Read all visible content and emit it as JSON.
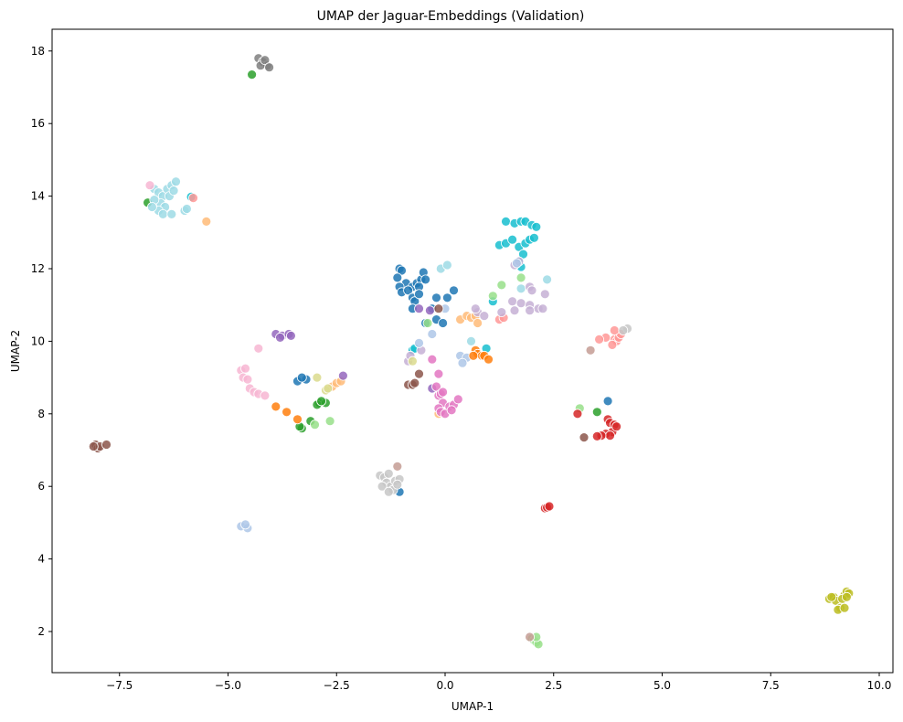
{
  "chart_data": {
    "type": "scatter",
    "title": "UMAP der Jaguar-Embeddings (Validation)",
    "xlabel": "UMAP-1",
    "ylabel": "UMAP-2",
    "xlim": [
      -8.9,
      10.3
    ],
    "ylim": [
      0.85,
      18.6
    ],
    "xticks": [
      -7.5,
      -5.0,
      -2.5,
      0.0,
      2.5,
      5.0,
      7.5,
      10.0
    ],
    "xtick_labels": [
      "−7.5",
      "−5.0",
      "−2.5",
      "0.0",
      "2.5",
      "5.0",
      "7.5",
      "10.0"
    ],
    "yticks": [
      2,
      4,
      6,
      8,
      10,
      12,
      14,
      16,
      18
    ],
    "ytick_labels": [
      "2",
      "4",
      "6",
      "8",
      "10",
      "12",
      "14",
      "16",
      "18"
    ],
    "grid": false,
    "legend": null,
    "marker_edge_color": "#ffffff",
    "marker_alpha": 0.85,
    "series": [
      {
        "name": "gray",
        "color": "#7f7f7f",
        "points": [
          [
            -4.3,
            17.8
          ],
          [
            -4.2,
            17.7
          ],
          [
            -4.1,
            17.6
          ],
          [
            -4.25,
            17.6
          ],
          [
            -4.15,
            17.75
          ],
          [
            -4.05,
            17.55
          ]
        ]
      },
      {
        "name": "green",
        "color": "#2ca02c",
        "points": [
          [
            -4.45,
            17.35
          ],
          [
            -6.85,
            13.82
          ],
          [
            -3.3,
            7.6
          ],
          [
            -3.35,
            7.65
          ],
          [
            -3.1,
            7.8
          ],
          [
            -2.9,
            8.3
          ],
          [
            -2.95,
            8.25
          ],
          [
            -2.75,
            8.3
          ],
          [
            -2.85,
            8.35
          ],
          [
            3.5,
            8.05
          ]
        ]
      },
      {
        "name": "light-cyan",
        "color": "#9edae5",
        "points": [
          [
            -6.7,
            14.2
          ],
          [
            -6.6,
            14.1
          ],
          [
            -6.5,
            14.0
          ],
          [
            -6.4,
            14.2
          ],
          [
            -6.3,
            14.3
          ],
          [
            -6.2,
            14.4
          ],
          [
            -6.35,
            14.0
          ],
          [
            -6.55,
            13.8
          ],
          [
            -6.45,
            13.7
          ],
          [
            -6.6,
            13.6
          ],
          [
            -6.5,
            13.5
          ],
          [
            -6.3,
            13.5
          ],
          [
            -6.0,
            13.6
          ],
          [
            -5.95,
            13.65
          ],
          [
            -6.7,
            13.9
          ],
          [
            -6.25,
            14.15
          ],
          [
            -6.75,
            13.7
          ],
          [
            -0.1,
            12.0
          ],
          [
            0.05,
            12.1
          ],
          [
            2.35,
            11.7
          ],
          [
            -0.45,
            10.5
          ],
          [
            0.6,
            10.0
          ],
          [
            1.75,
            11.45
          ]
        ]
      },
      {
        "name": "pink",
        "color": "#f7b6d2",
        "points": [
          [
            -6.8,
            14.3
          ],
          [
            -4.3,
            9.8
          ],
          [
            -4.7,
            9.2
          ],
          [
            -4.6,
            9.25
          ],
          [
            -4.65,
            9.0
          ],
          [
            -4.55,
            8.95
          ],
          [
            -4.5,
            8.7
          ],
          [
            -4.4,
            8.6
          ],
          [
            -4.3,
            8.55
          ],
          [
            -4.15,
            8.5
          ]
        ]
      },
      {
        "name": "cyan",
        "color": "#17becf",
        "points": [
          [
            -5.85,
            13.98
          ],
          [
            1.4,
            13.3
          ],
          [
            1.6,
            13.25
          ],
          [
            1.75,
            13.3
          ],
          [
            1.85,
            13.3
          ],
          [
            2.0,
            13.2
          ],
          [
            2.1,
            13.15
          ],
          [
            1.25,
            12.65
          ],
          [
            1.4,
            12.7
          ],
          [
            1.55,
            12.8
          ],
          [
            1.7,
            12.6
          ],
          [
            1.85,
            12.7
          ],
          [
            1.95,
            12.8
          ],
          [
            2.05,
            12.85
          ],
          [
            1.8,
            12.4
          ],
          [
            1.7,
            12.2
          ],
          [
            1.75,
            12.05
          ],
          [
            -0.75,
            9.75
          ],
          [
            -0.7,
            9.8
          ],
          [
            0.95,
            9.8
          ],
          [
            1.1,
            11.1
          ]
        ]
      },
      {
        "name": "salmon",
        "color": "#ff9896",
        "points": [
          [
            -5.8,
            13.95
          ],
          [
            3.9,
            10.05
          ],
          [
            3.95,
            10.0
          ],
          [
            3.7,
            10.1
          ],
          [
            3.55,
            10.05
          ],
          [
            3.85,
            9.9
          ],
          [
            4.0,
            10.1
          ],
          [
            4.05,
            10.2
          ],
          [
            3.9,
            10.3
          ],
          [
            1.25,
            10.6
          ],
          [
            1.35,
            10.65
          ]
        ]
      },
      {
        "name": "peach",
        "color": "#ffbb78",
        "points": [
          [
            -5.5,
            13.3
          ],
          [
            -2.6,
            8.75
          ],
          [
            -2.5,
            8.85
          ],
          [
            -2.4,
            8.9
          ],
          [
            0.35,
            10.6
          ],
          [
            0.5,
            10.7
          ],
          [
            0.6,
            10.65
          ],
          [
            0.7,
            10.7
          ],
          [
            0.75,
            10.5
          ],
          [
            -0.15,
            8.0
          ]
        ]
      },
      {
        "name": "blue",
        "color": "#1f77b4",
        "points": [
          [
            -1.05,
            12.0
          ],
          [
            -1.0,
            11.95
          ],
          [
            -1.1,
            11.75
          ],
          [
            -0.9,
            11.6
          ],
          [
            -0.75,
            11.5
          ],
          [
            -0.65,
            11.6
          ],
          [
            -0.55,
            11.7
          ],
          [
            -0.6,
            11.5
          ],
          [
            -1.05,
            11.5
          ],
          [
            -1.0,
            11.35
          ],
          [
            -0.85,
            11.4
          ],
          [
            -0.75,
            11.2
          ],
          [
            -0.7,
            11.1
          ],
          [
            -0.5,
            11.9
          ],
          [
            -0.45,
            11.7
          ],
          [
            -0.6,
            11.3
          ],
          [
            -0.2,
            11.2
          ],
          [
            0.05,
            11.2
          ],
          [
            0.2,
            11.4
          ],
          [
            -0.3,
            10.9
          ],
          [
            -0.75,
            10.9
          ],
          [
            -0.45,
            10.5
          ],
          [
            -0.2,
            10.6
          ],
          [
            -0.05,
            10.5
          ],
          [
            -3.4,
            8.9
          ],
          [
            -3.2,
            8.95
          ],
          [
            -3.3,
            9.0
          ],
          [
            -1.05,
            5.85
          ],
          [
            3.75,
            8.35
          ]
        ]
      },
      {
        "name": "purple",
        "color": "#9467bd",
        "points": [
          [
            -3.9,
            10.2
          ],
          [
            -3.75,
            10.15
          ],
          [
            -3.6,
            10.2
          ],
          [
            -3.55,
            10.15
          ],
          [
            -3.8,
            10.1
          ],
          [
            -0.6,
            10.9
          ],
          [
            -0.35,
            10.85
          ],
          [
            -2.35,
            9.05
          ],
          [
            -0.3,
            8.7
          ]
        ]
      },
      {
        "name": "lavender",
        "color": "#c5b0d5",
        "points": [
          [
            1.6,
            12.1
          ],
          [
            1.7,
            12.2
          ],
          [
            1.95,
            11.5
          ],
          [
            2.0,
            11.4
          ],
          [
            1.55,
            11.1
          ],
          [
            1.75,
            11.05
          ],
          [
            1.95,
            11.0
          ],
          [
            2.15,
            10.9
          ],
          [
            2.25,
            10.9
          ],
          [
            2.3,
            11.3
          ],
          [
            1.95,
            10.85
          ],
          [
            1.6,
            10.85
          ],
          [
            0.75,
            10.8
          ],
          [
            0.9,
            10.7
          ],
          [
            1.3,
            10.8
          ],
          [
            0.7,
            10.9
          ],
          [
            -0.85,
            9.45
          ],
          [
            -0.8,
            9.6
          ],
          [
            -0.55,
            9.75
          ]
        ]
      },
      {
        "name": "light-green",
        "color": "#98df8a",
        "points": [
          [
            1.75,
            11.75
          ],
          [
            1.3,
            11.55
          ],
          [
            1.1,
            11.25
          ],
          [
            -0.4,
            10.5
          ],
          [
            -3.0,
            7.7
          ],
          [
            -2.65,
            7.8
          ],
          [
            3.1,
            8.15
          ],
          [
            2.0,
            1.8
          ],
          [
            2.05,
            1.75
          ],
          [
            2.1,
            1.7
          ],
          [
            2.15,
            1.65
          ],
          [
            2.1,
            1.85
          ]
        ]
      },
      {
        "name": "light-blue",
        "color": "#aec7e8",
        "points": [
          [
            1.65,
            12.15
          ],
          [
            0.0,
            10.9
          ],
          [
            -0.3,
            10.2
          ],
          [
            -0.6,
            9.95
          ],
          [
            0.35,
            9.6
          ],
          [
            0.5,
            9.55
          ],
          [
            0.4,
            9.4
          ],
          [
            -4.7,
            4.9
          ],
          [
            -4.55,
            4.85
          ],
          [
            -4.6,
            4.95
          ]
        ]
      },
      {
        "name": "orange",
        "color": "#ff7f0e",
        "points": [
          [
            0.7,
            9.75
          ],
          [
            0.75,
            9.65
          ],
          [
            0.85,
            9.6
          ],
          [
            0.9,
            9.6
          ],
          [
            1.0,
            9.5
          ],
          [
            0.65,
            9.6
          ],
          [
            -3.9,
            8.2
          ],
          [
            -3.65,
            8.05
          ],
          [
            -3.4,
            7.85
          ]
        ]
      },
      {
        "name": "brown",
        "color": "#8c564b",
        "points": [
          [
            -0.15,
            10.9
          ],
          [
            -0.6,
            9.1
          ],
          [
            -0.85,
            8.8
          ],
          [
            -0.75,
            8.8
          ],
          [
            -0.7,
            8.85
          ],
          [
            -8.05,
            7.15
          ],
          [
            -8.0,
            7.05
          ],
          [
            -7.95,
            7.1
          ],
          [
            -7.8,
            7.15
          ],
          [
            -8.1,
            7.1
          ],
          [
            3.2,
            7.35
          ]
        ]
      },
      {
        "name": "olive-light",
        "color": "#dbdb8d",
        "points": [
          [
            -0.75,
            9.45
          ],
          [
            -2.95,
            9.0
          ],
          [
            -2.75,
            8.65
          ],
          [
            -2.7,
            8.7
          ]
        ]
      },
      {
        "name": "magenta",
        "color": "#e377c2",
        "points": [
          [
            -0.3,
            9.5
          ],
          [
            -0.15,
            9.1
          ],
          [
            -0.2,
            8.75
          ],
          [
            -0.15,
            8.5
          ],
          [
            -0.1,
            8.55
          ],
          [
            -0.05,
            8.3
          ],
          [
            0.1,
            8.2
          ],
          [
            0.2,
            8.25
          ],
          [
            0.3,
            8.4
          ],
          [
            -0.15,
            8.15
          ],
          [
            -0.1,
            8.05
          ],
          [
            0.0,
            8.0
          ],
          [
            0.15,
            8.1
          ],
          [
            -0.05,
            8.6
          ]
        ]
      },
      {
        "name": "red",
        "color": "#d62728",
        "points": [
          [
            3.05,
            8.0
          ],
          [
            3.75,
            7.85
          ],
          [
            3.8,
            7.75
          ],
          [
            3.9,
            7.7
          ],
          [
            3.85,
            7.5
          ],
          [
            3.7,
            7.45
          ],
          [
            3.8,
            7.4
          ],
          [
            3.6,
            7.4
          ],
          [
            3.5,
            7.38
          ],
          [
            3.95,
            7.65
          ],
          [
            2.3,
            5.4
          ],
          [
            2.35,
            5.42
          ],
          [
            2.4,
            5.45
          ]
        ]
      },
      {
        "name": "rosy",
        "color": "#c49c94",
        "points": [
          [
            3.35,
            9.75
          ],
          [
            -1.1,
            6.55
          ],
          [
            1.95,
            1.85
          ]
        ]
      },
      {
        "name": "light-gray",
        "color": "#c7c7c7",
        "points": [
          [
            4.2,
            10.35
          ],
          [
            4.1,
            10.3
          ],
          [
            -1.5,
            6.3
          ],
          [
            -1.4,
            6.25
          ],
          [
            -1.3,
            6.35
          ],
          [
            -1.35,
            6.1
          ],
          [
            -1.25,
            6.0
          ],
          [
            -1.15,
            6.15
          ],
          [
            -1.45,
            6.0
          ],
          [
            -1.05,
            6.2
          ],
          [
            -1.2,
            5.9
          ],
          [
            -1.3,
            5.85
          ],
          [
            -1.1,
            6.05
          ]
        ]
      },
      {
        "name": "olive",
        "color": "#bcbd22",
        "points": [
          [
            8.85,
            2.9
          ],
          [
            8.95,
            2.95
          ],
          [
            9.0,
            2.85
          ],
          [
            9.2,
            3.0
          ],
          [
            9.25,
            3.1
          ],
          [
            9.3,
            3.05
          ],
          [
            9.15,
            2.9
          ],
          [
            9.25,
            2.95
          ],
          [
            9.1,
            2.65
          ],
          [
            9.05,
            2.6
          ],
          [
            9.2,
            2.65
          ],
          [
            8.9,
            2.95
          ]
        ]
      }
    ]
  }
}
